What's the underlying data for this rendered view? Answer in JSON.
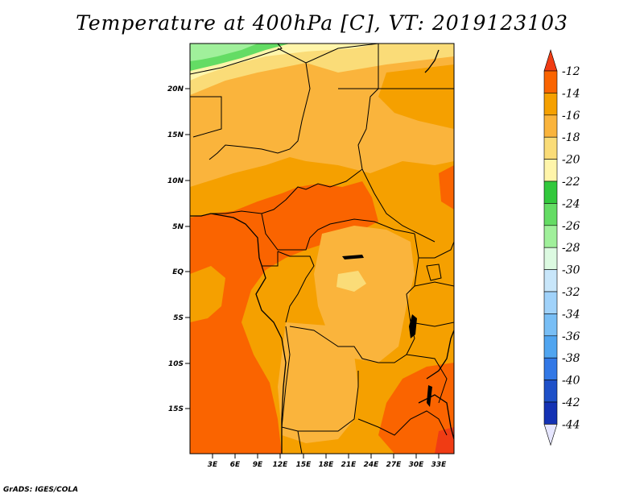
{
  "title": "Temperature at 400hPa [C], VT: 2019123103",
  "credit": "GrADS: IGES/COLA",
  "y_ticks": [
    "20N",
    "15N",
    "10N",
    "5N",
    "EQ",
    "5S",
    "10S",
    "15S"
  ],
  "x_ticks": [
    "3E",
    "6E",
    "9E",
    "12E",
    "15E",
    "18E",
    "21E",
    "24E",
    "27E",
    "30E",
    "33E"
  ],
  "colorbar": {
    "labels": [
      "-12",
      "-14",
      "-16",
      "-18",
      "-20",
      "-22",
      "-24",
      "-26",
      "-28",
      "-30",
      "-32",
      "-34",
      "-36",
      "-38",
      "-40",
      "-42",
      "-44"
    ],
    "colors": [
      "#f03c14",
      "#fa6400",
      "#f5a000",
      "#fab43c",
      "#fadc78",
      "#fff5aa",
      "#32c83c",
      "#64dc64",
      "#a0f09b",
      "#dcfae1",
      "#c8e6fa",
      "#a0d2fa",
      "#78bef5",
      "#50a5f0",
      "#3278e6",
      "#1e50c8",
      "#1432b4",
      "#0a0a78",
      "#e6e6ff"
    ]
  }
}
